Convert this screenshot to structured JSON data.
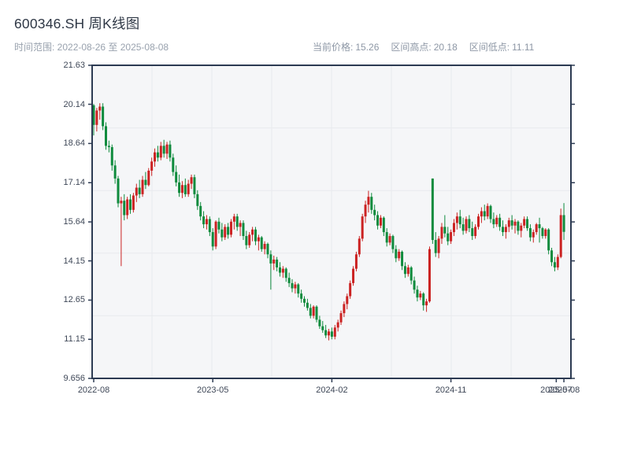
{
  "header": {
    "title": "600346.SH 周K线图",
    "subtitle": "时间范围: 2022-08-26 至 2025-08-08",
    "info": [
      {
        "label": "当前价格:",
        "value": "15.26"
      },
      {
        "label": "区间高点:",
        "value": "20.18"
      },
      {
        "label": "区间低点:",
        "value": "11.11"
      }
    ]
  },
  "chart_data": {
    "type": "candlestick",
    "symbol": "600346.SH",
    "interval": "weekly",
    "title": "600346.SH 周K线图",
    "date_range": {
      "start": "2022-08-26",
      "end": "2025-08-08"
    },
    "current_price": 15.26,
    "period_high": 20.18,
    "period_low": 11.11,
    "ylim": [
      9.656,
      21.63
    ],
    "y_ticks": [
      "21.63",
      "20.14",
      "18.64",
      "17.14",
      "15.64",
      "14.15",
      "12.65",
      "11.15",
      "9.656"
    ],
    "y_tick_values": [
      21.63,
      20.14,
      18.64,
      17.14,
      15.64,
      14.15,
      12.65,
      11.15,
      9.656
    ],
    "x_ticks": [
      {
        "pos": 0,
        "label": "2022-08"
      },
      {
        "pos": 39,
        "label": "2023-05"
      },
      {
        "pos": 78,
        "label": "2024-02"
      },
      {
        "pos": 117,
        "label": "2024-11"
      },
      {
        "pos": 151.5,
        "label": "2025-07"
      },
      {
        "pos": 154,
        "label": "2025-08"
      }
    ],
    "grid": {
      "on": true,
      "x_divisions": 8,
      "y_divisions": 5
    },
    "colors": {
      "up": "#cb2222",
      "down": "#0f8b3d",
      "axis": "#2c3a52",
      "grid": "#e8eaee",
      "plot_bg": "#f5f6f8",
      "tick_text": "#3e4757"
    },
    "candles_format": [
      "open",
      "high",
      "low",
      "close"
    ],
    "candles": [
      [
        20.1,
        20.15,
        18.95,
        19.35
      ],
      [
        19.35,
        20.0,
        19.1,
        19.9
      ],
      [
        19.9,
        20.18,
        19.55,
        20.05
      ],
      [
        20.05,
        20.18,
        19.15,
        19.3
      ],
      [
        19.3,
        19.45,
        18.4,
        18.55
      ],
      [
        18.55,
        18.75,
        18.3,
        18.5
      ],
      [
        18.5,
        18.6,
        17.6,
        17.8
      ],
      [
        17.8,
        18.0,
        17.1,
        17.3
      ],
      [
        17.3,
        17.4,
        16.2,
        16.35
      ],
      [
        16.35,
        16.6,
        13.95,
        16.45
      ],
      [
        16.45,
        16.7,
        15.7,
        15.9
      ],
      [
        15.9,
        16.6,
        15.75,
        16.5
      ],
      [
        16.5,
        16.7,
        15.95,
        16.1
      ],
      [
        16.1,
        16.75,
        16.0,
        16.65
      ],
      [
        16.65,
        17.1,
        16.4,
        16.95
      ],
      [
        16.95,
        17.25,
        16.55,
        16.7
      ],
      [
        16.7,
        17.4,
        16.6,
        17.25
      ],
      [
        17.25,
        17.55,
        16.9,
        17.05
      ],
      [
        17.05,
        17.7,
        17.0,
        17.6
      ],
      [
        17.6,
        18.1,
        17.4,
        17.95
      ],
      [
        17.95,
        18.45,
        17.75,
        18.3
      ],
      [
        18.3,
        18.55,
        17.95,
        18.1
      ],
      [
        18.1,
        18.7,
        18.0,
        18.55
      ],
      [
        18.55,
        18.78,
        18.1,
        18.25
      ],
      [
        18.25,
        18.7,
        18.05,
        18.6
      ],
      [
        18.6,
        18.75,
        17.95,
        18.1
      ],
      [
        18.1,
        18.25,
        17.4,
        17.55
      ],
      [
        17.55,
        17.8,
        17.0,
        17.15
      ],
      [
        17.15,
        17.45,
        16.6,
        16.75
      ],
      [
        16.75,
        17.2,
        16.55,
        17.05
      ],
      [
        17.05,
        17.3,
        16.6,
        16.7
      ],
      [
        16.7,
        17.25,
        16.6,
        17.1
      ],
      [
        17.1,
        17.45,
        16.9,
        17.35
      ],
      [
        17.35,
        17.45,
        16.55,
        16.7
      ],
      [
        16.7,
        16.85,
        16.1,
        16.25
      ],
      [
        16.25,
        16.4,
        15.7,
        15.85
      ],
      [
        15.85,
        16.05,
        15.4,
        15.55
      ],
      [
        15.55,
        15.9,
        15.35,
        15.75
      ],
      [
        15.75,
        15.85,
        15.1,
        15.25
      ],
      [
        15.25,
        15.4,
        14.55,
        14.7
      ],
      [
        14.7,
        15.7,
        14.6,
        15.65
      ],
      [
        15.65,
        15.8,
        15.2,
        15.35
      ],
      [
        15.35,
        15.6,
        14.9,
        15.05
      ],
      [
        15.05,
        15.55,
        14.95,
        15.45
      ],
      [
        15.45,
        15.6,
        15.0,
        15.15
      ],
      [
        15.15,
        15.75,
        15.05,
        15.65
      ],
      [
        15.65,
        15.95,
        15.35,
        15.85
      ],
      [
        15.85,
        15.95,
        15.3,
        15.45
      ],
      [
        15.45,
        15.7,
        15.1,
        15.6
      ],
      [
        15.6,
        15.7,
        14.95,
        15.1
      ],
      [
        15.1,
        15.3,
        14.6,
        14.75
      ],
      [
        14.75,
        15.25,
        14.65,
        15.15
      ],
      [
        15.15,
        15.45,
        14.9,
        15.35
      ],
      [
        15.35,
        15.45,
        14.75,
        14.9
      ],
      [
        14.9,
        15.15,
        14.55,
        15.05
      ],
      [
        15.05,
        15.1,
        14.5,
        14.6
      ],
      [
        14.6,
        14.9,
        14.4,
        14.8
      ],
      [
        14.8,
        14.85,
        14.25,
        14.4
      ],
      [
        14.4,
        14.55,
        13.05,
        14.05
      ],
      [
        14.05,
        14.35,
        13.8,
        14.2
      ],
      [
        14.2,
        14.3,
        13.75,
        13.9
      ],
      [
        13.9,
        14.1,
        13.55,
        13.7
      ],
      [
        13.7,
        13.95,
        13.5,
        13.85
      ],
      [
        13.85,
        13.9,
        13.35,
        13.5
      ],
      [
        13.5,
        13.7,
        13.15,
        13.3
      ],
      [
        13.3,
        13.45,
        12.95,
        13.1
      ],
      [
        13.1,
        13.35,
        12.9,
        13.25
      ],
      [
        13.25,
        13.3,
        12.75,
        12.9
      ],
      [
        12.9,
        13.05,
        12.55,
        12.7
      ],
      [
        12.7,
        12.8,
        12.4,
        12.55
      ],
      [
        12.55,
        12.7,
        12.25,
        12.35
      ],
      [
        12.35,
        12.5,
        11.95,
        12.05
      ],
      [
        12.05,
        12.45,
        11.95,
        12.4
      ],
      [
        12.4,
        12.45,
        11.8,
        11.9
      ],
      [
        11.9,
        12.05,
        11.55,
        11.65
      ],
      [
        11.65,
        11.85,
        11.4,
        11.5
      ],
      [
        11.5,
        11.7,
        11.2,
        11.3
      ],
      [
        11.3,
        11.55,
        11.11,
        11.45
      ],
      [
        11.45,
        11.6,
        11.15,
        11.25
      ],
      [
        11.25,
        11.7,
        11.15,
        11.6
      ],
      [
        11.6,
        11.9,
        11.45,
        11.8
      ],
      [
        11.8,
        12.25,
        11.7,
        12.15
      ],
      [
        12.15,
        12.6,
        12.0,
        12.5
      ],
      [
        12.5,
        12.9,
        12.3,
        12.8
      ],
      [
        12.8,
        13.4,
        12.7,
        13.3
      ],
      [
        13.3,
        13.95,
        13.2,
        13.85
      ],
      [
        13.85,
        14.5,
        13.75,
        14.4
      ],
      [
        14.4,
        15.1,
        14.3,
        15.0
      ],
      [
        15.0,
        15.95,
        14.9,
        15.85
      ],
      [
        15.85,
        16.45,
        15.6,
        16.3
      ],
      [
        16.3,
        16.83,
        16.0,
        16.6
      ],
      [
        16.6,
        16.75,
        15.95,
        16.1
      ],
      [
        16.1,
        16.3,
        15.7,
        15.9
      ],
      [
        15.9,
        16.05,
        15.35,
        15.5
      ],
      [
        15.5,
        15.9,
        15.4,
        15.8
      ],
      [
        15.8,
        15.85,
        15.1,
        15.25
      ],
      [
        15.25,
        15.4,
        14.7,
        14.85
      ],
      [
        14.85,
        15.2,
        14.75,
        15.1
      ],
      [
        15.1,
        15.15,
        14.45,
        14.6
      ],
      [
        14.6,
        14.75,
        14.1,
        14.25
      ],
      [
        14.25,
        14.6,
        14.15,
        14.5
      ],
      [
        14.5,
        14.55,
        13.8,
        13.95
      ],
      [
        13.95,
        14.1,
        13.5,
        13.65
      ],
      [
        13.65,
        14.0,
        13.55,
        13.9
      ],
      [
        13.9,
        13.95,
        13.25,
        13.4
      ],
      [
        13.4,
        13.55,
        12.9,
        13.05
      ],
      [
        13.05,
        13.2,
        12.6,
        12.75
      ],
      [
        12.75,
        13.0,
        12.65,
        12.9
      ],
      [
        12.9,
        12.95,
        12.25,
        12.45
      ],
      [
        12.45,
        12.7,
        12.2,
        12.6
      ],
      [
        12.6,
        14.7,
        12.55,
        14.6
      ],
      [
        17.3,
        17.3,
        14.8,
        14.95
      ],
      [
        14.95,
        15.25,
        14.3,
        14.45
      ],
      [
        14.45,
        15.1,
        14.25,
        15.0
      ],
      [
        15.0,
        15.6,
        14.8,
        15.45
      ],
      [
        15.45,
        15.9,
        15.05,
        15.2
      ],
      [
        15.2,
        15.45,
        14.75,
        14.9
      ],
      [
        14.9,
        15.35,
        14.8,
        15.25
      ],
      [
        15.25,
        15.75,
        15.1,
        15.6
      ],
      [
        15.6,
        16.0,
        15.35,
        15.85
      ],
      [
        15.85,
        16.1,
        15.4,
        15.55
      ],
      [
        15.55,
        15.8,
        15.15,
        15.3
      ],
      [
        15.3,
        15.85,
        15.2,
        15.75
      ],
      [
        15.75,
        15.9,
        15.25,
        15.4
      ],
      [
        15.4,
        15.65,
        14.95,
        15.1
      ],
      [
        15.1,
        15.55,
        15.0,
        15.45
      ],
      [
        15.45,
        15.95,
        15.35,
        15.85
      ],
      [
        15.85,
        16.2,
        15.6,
        16.05
      ],
      [
        16.05,
        16.3,
        15.7,
        15.85
      ],
      [
        15.85,
        16.35,
        15.75,
        16.25
      ],
      [
        16.25,
        16.3,
        15.6,
        15.75
      ],
      [
        15.75,
        16.0,
        15.4,
        15.55
      ],
      [
        15.55,
        15.9,
        15.45,
        15.8
      ],
      [
        15.8,
        15.95,
        15.3,
        15.45
      ],
      [
        15.45,
        15.7,
        15.1,
        15.25
      ],
      [
        15.25,
        15.55,
        15.0,
        15.45
      ],
      [
        15.45,
        15.8,
        15.25,
        15.7
      ],
      [
        15.7,
        15.9,
        15.35,
        15.5
      ],
      [
        15.5,
        15.75,
        15.2,
        15.65
      ],
      [
        15.65,
        15.7,
        15.15,
        15.3
      ],
      [
        15.3,
        15.6,
        15.05,
        15.5
      ],
      [
        15.5,
        15.85,
        15.4,
        15.75
      ],
      [
        15.75,
        15.85,
        15.3,
        15.4
      ],
      [
        15.4,
        15.55,
        14.9,
        15.05
      ],
      [
        15.05,
        15.35,
        14.85,
        15.25
      ],
      [
        15.25,
        15.6,
        15.15,
        15.55
      ],
      [
        15.55,
        15.8,
        14.85,
        15.4
      ],
      [
        15.4,
        15.45,
        15.0,
        15.1
      ],
      [
        15.1,
        15.4,
        15.0,
        15.35
      ],
      [
        15.35,
        15.4,
        14.4,
        14.55
      ],
      [
        14.55,
        14.65,
        13.95,
        14.1
      ],
      [
        14.1,
        14.3,
        13.75,
        13.9
      ],
      [
        13.9,
        14.4,
        13.8,
        14.3
      ],
      [
        14.3,
        16.15,
        14.25,
        15.9
      ],
      [
        15.9,
        16.36,
        14.95,
        15.26
      ]
    ]
  }
}
